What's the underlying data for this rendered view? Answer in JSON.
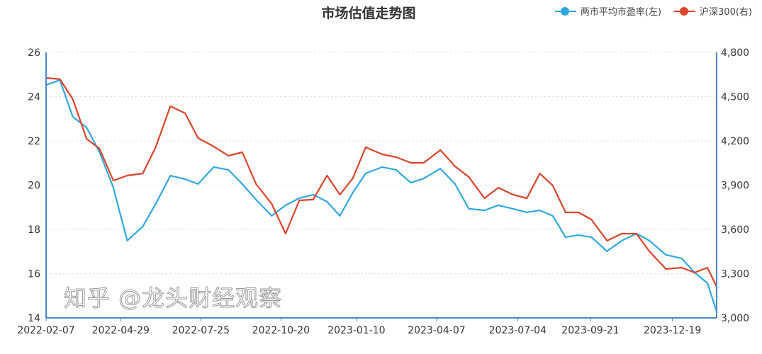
{
  "chart_data": {
    "type": "line",
    "title": "市场估值走势图",
    "legend_position": "top-right",
    "grid": true,
    "x_tick_labels": [
      "2022-02-07",
      "2022-04-29",
      "2022-07-25",
      "2022-10-20",
      "2023-01-10",
      "2023-04-07",
      "2023-07-04",
      "2023-09-21",
      "2023-12-19"
    ],
    "y_left": {
      "range": [
        14,
        26
      ],
      "ticks": [
        "14",
        "16",
        "18",
        "20",
        "22",
        "24",
        "26"
      ]
    },
    "y_right": {
      "range": [
        3000,
        4800
      ],
      "ticks": [
        "3,000",
        "3,300",
        "3,600",
        "3,900",
        "4,200",
        "4,500",
        "4,800"
      ]
    },
    "x": [
      "2022-02-07",
      "2022-02-22",
      "2022-03-08",
      "2022-03-23",
      "2022-04-06",
      "2022-04-21",
      "2022-05-06",
      "2022-05-23",
      "2022-06-06",
      "2022-06-22",
      "2022-07-08",
      "2022-07-22",
      "2022-08-08",
      "2022-08-24",
      "2022-09-08",
      "2022-09-23",
      "2022-10-10",
      "2022-10-25",
      "2022-11-09",
      "2022-11-24",
      "2022-12-09",
      "2022-12-23",
      "2023-01-06",
      "2023-01-20",
      "2023-02-07",
      "2023-02-22",
      "2023-03-10",
      "2023-03-24",
      "2023-04-11",
      "2023-04-27",
      "2023-05-12",
      "2023-05-29",
      "2023-06-13",
      "2023-06-29",
      "2023-07-14",
      "2023-07-28",
      "2023-08-11",
      "2023-08-25",
      "2023-09-08",
      "2023-09-22",
      "2023-10-09",
      "2023-10-25",
      "2023-11-10",
      "2023-11-24",
      "2023-12-12",
      "2023-12-29",
      "2024-01-12",
      "2024-01-26",
      "2024-02-05"
    ],
    "series": [
      {
        "name": "两市平均市盈率(左)",
        "axis": "left",
        "color": "#2ea7e0",
        "values": [
          24.53,
          24.75,
          23.09,
          22.6,
          21.49,
          19.89,
          17.49,
          18.13,
          19.15,
          20.43,
          20.27,
          20.05,
          20.82,
          20.69,
          20.05,
          19.34,
          18.61,
          19.09,
          19.41,
          19.57,
          19.25,
          18.61,
          19.66,
          20.53,
          20.82,
          20.69,
          20.11,
          20.3,
          20.75,
          20.05,
          18.93,
          18.86,
          19.09,
          18.93,
          18.77,
          18.86,
          18.61,
          17.65,
          17.74,
          17.65,
          17.01,
          17.49,
          17.81,
          17.49,
          16.85,
          16.69,
          16.05,
          15.57,
          14.29
        ]
      },
      {
        "name": "沪深300(右)",
        "axis": "right",
        "color": "#d9442a",
        "values": [
          4627,
          4618,
          4483,
          4214,
          4147,
          3931,
          3965,
          3979,
          4157,
          4435,
          4387,
          4219,
          4162,
          4099,
          4123,
          3907,
          3773,
          3571,
          3797,
          3802,
          3965,
          3835,
          3946,
          4157,
          4109,
          4090,
          4051,
          4051,
          4138,
          4027,
          3955,
          3811,
          3883,
          3835,
          3811,
          3979,
          3898,
          3715,
          3715,
          3667,
          3523,
          3571,
          3571,
          3451,
          3331,
          3341,
          3307,
          3341,
          3211
        ]
      }
    ]
  },
  "watermark": "知乎 @龙头财经观察"
}
